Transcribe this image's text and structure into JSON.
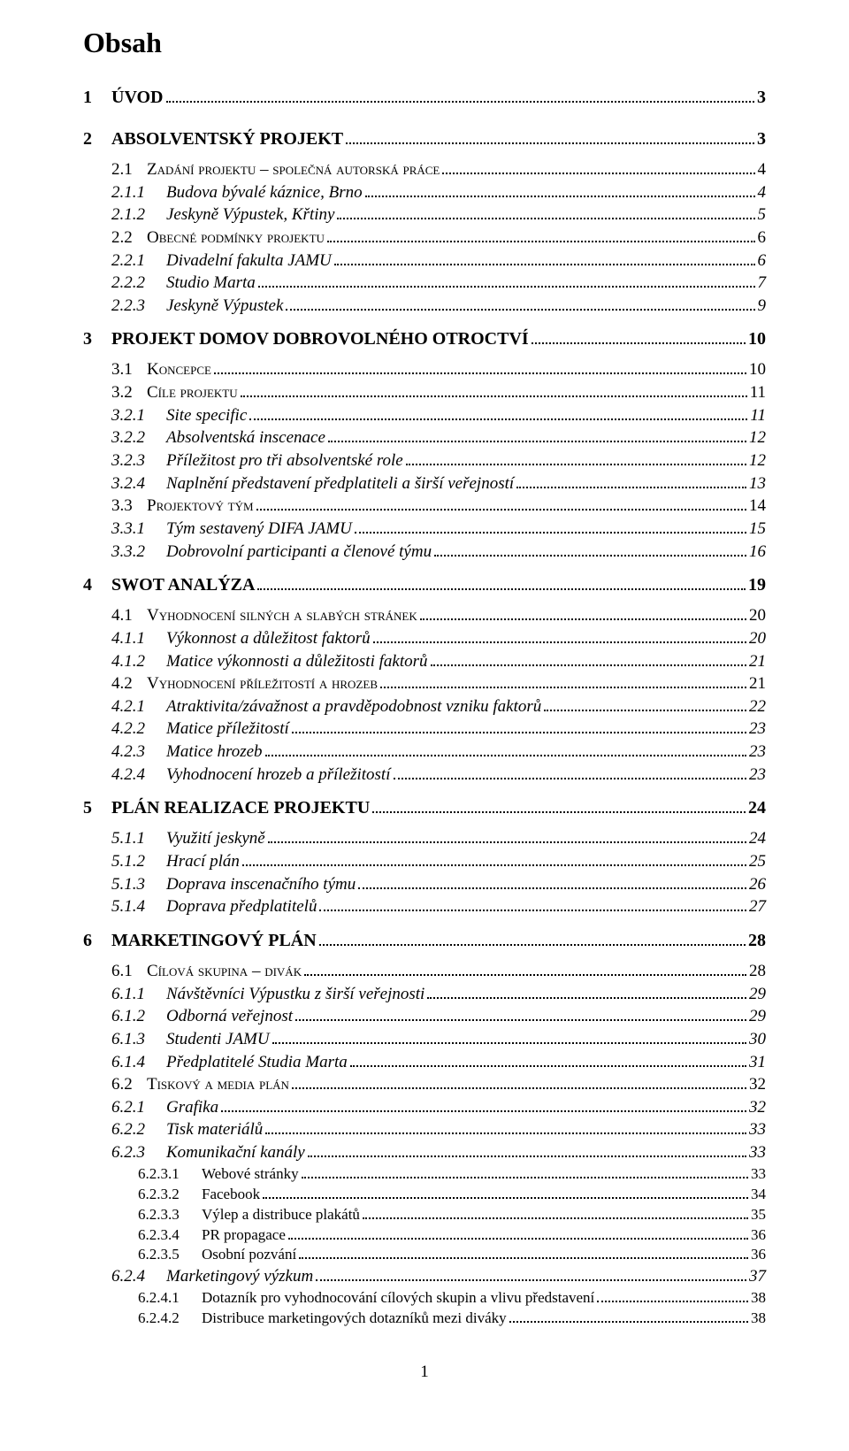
{
  "doc": {
    "title": "Obsah",
    "page_number": "1",
    "font_family": "Times New Roman",
    "text_color": "#000000",
    "background_color": "#ffffff",
    "dot_color": "#000000"
  },
  "toc": [
    {
      "level": "ch",
      "num": "1",
      "label": "ÚVOD",
      "page": "3"
    },
    {
      "level": "ch",
      "num": "2",
      "label": "ABSOLVENTSKÝ PROJEKT",
      "page": "3"
    },
    {
      "level": "sec",
      "num": "2.1",
      "label": "Zadání projektu – společná autorská práce",
      "page": "4"
    },
    {
      "level": "sub",
      "num": "2.1.1",
      "label": "Budova bývalé káznice, Brno",
      "page": "4"
    },
    {
      "level": "sub",
      "num": "2.1.2",
      "label": "Jeskyně Výpustek, Křtiny",
      "page": "5"
    },
    {
      "level": "sec",
      "num": "2.2",
      "label": "Obecné podmínky projektu",
      "page": "6"
    },
    {
      "level": "sub",
      "num": "2.2.1",
      "label": "Divadelní fakulta JAMU",
      "page": "6"
    },
    {
      "level": "sub",
      "num": "2.2.2",
      "label": "Studio Marta",
      "page": "7"
    },
    {
      "level": "sub",
      "num": "2.2.3",
      "label": "Jeskyně Výpustek",
      "page": "9"
    },
    {
      "level": "ch",
      "num": "3",
      "label": "PROJEKT DOMOV DOBROVOLNÉHO OTROCTVÍ",
      "page": "10"
    },
    {
      "level": "sec",
      "num": "3.1",
      "label": "Koncepce",
      "page": "10"
    },
    {
      "level": "sec",
      "num": "3.2",
      "label": "Cíle projektu",
      "page": "11"
    },
    {
      "level": "sub",
      "num": "3.2.1",
      "label": "Site specific",
      "page": "11"
    },
    {
      "level": "sub",
      "num": "3.2.2",
      "label": "Absolventská inscenace",
      "page": "12"
    },
    {
      "level": "sub",
      "num": "3.2.3",
      "label": "Příležitost pro tři absolventské role",
      "page": "12"
    },
    {
      "level": "sub",
      "num": "3.2.4",
      "label": "Naplnění představení předplatiteli a širší veřejností",
      "page": "13"
    },
    {
      "level": "sec",
      "num": "3.3",
      "label": "Projektový tým",
      "page": "14"
    },
    {
      "level": "sub",
      "num": "3.3.1",
      "label": "Tým sestavený DIFA JAMU",
      "page": "15"
    },
    {
      "level": "sub",
      "num": "3.3.2",
      "label": "Dobrovolní participanti a členové týmu",
      "page": "16"
    },
    {
      "level": "ch",
      "num": "4",
      "label": "SWOT ANALÝZA",
      "page": "19"
    },
    {
      "level": "sec",
      "num": "4.1",
      "label": "Vyhodnocení silných a slabých stránek",
      "page": "20"
    },
    {
      "level": "sub",
      "num": "4.1.1",
      "label": "Výkonnost a důležitost faktorů",
      "page": "20"
    },
    {
      "level": "sub",
      "num": "4.1.2",
      "label": "Matice výkonnosti a důležitosti faktorů",
      "page": "21"
    },
    {
      "level": "sec",
      "num": "4.2",
      "label": "Vyhodnocení příležitostí a hrozeb",
      "page": "21"
    },
    {
      "level": "sub",
      "num": "4.2.1",
      "label": "Atraktivita/závažnost a pravděpodobnost vzniku faktorů",
      "page": "22"
    },
    {
      "level": "sub",
      "num": "4.2.2",
      "label": "Matice příležitostí",
      "page": "23"
    },
    {
      "level": "sub",
      "num": "4.2.3",
      "label": "Matice hrozeb",
      "page": "23"
    },
    {
      "level": "sub",
      "num": "4.2.4",
      "label": "Vyhodnocení hrozeb a příležitostí",
      "page": "23"
    },
    {
      "level": "ch",
      "num": "5",
      "label": "PLÁN REALIZACE PROJEKTU",
      "page": "24"
    },
    {
      "level": "sub",
      "num": "5.1.1",
      "label": "Využití jeskyně",
      "page": "24"
    },
    {
      "level": "sub",
      "num": "5.1.2",
      "label": "Hrací plán",
      "page": "25"
    },
    {
      "level": "sub",
      "num": "5.1.3",
      "label": "Doprava inscenačního týmu",
      "page": "26"
    },
    {
      "level": "sub",
      "num": "5.1.4",
      "label": "Doprava předplatitelů",
      "page": "27"
    },
    {
      "level": "ch",
      "num": "6",
      "label": "MARKETINGOVÝ PLÁN",
      "page": "28"
    },
    {
      "level": "sec",
      "num": "6.1",
      "label": "Cílová skupina – divák",
      "page": "28"
    },
    {
      "level": "sub",
      "num": "6.1.1",
      "label": "Návštěvníci Výpustku z širší veřejnosti",
      "page": "29"
    },
    {
      "level": "sub",
      "num": "6.1.2",
      "label": "Odborná veřejnost",
      "page": "29"
    },
    {
      "level": "sub",
      "num": "6.1.3",
      "label": "Studenti JAMU",
      "page": "30"
    },
    {
      "level": "sub",
      "num": "6.1.4",
      "label": "Předplatitelé Studia Marta",
      "page": "31"
    },
    {
      "level": "sec",
      "num": "6.2",
      "label": "Tiskový a media plán",
      "page": "32"
    },
    {
      "level": "sub",
      "num": "6.2.1",
      "label": "Grafika",
      "page": "32"
    },
    {
      "level": "sub",
      "num": "6.2.2",
      "label": "Tisk materiálů",
      "page": "33"
    },
    {
      "level": "sub",
      "num": "6.2.3",
      "label": "Komunikační kanály",
      "page": "33"
    },
    {
      "level": "subsub",
      "num": "6.2.3.1",
      "label": "Webové stránky",
      "page": "33"
    },
    {
      "level": "subsub",
      "num": "6.2.3.2",
      "label": "Facebook",
      "page": "34"
    },
    {
      "level": "subsub",
      "num": "6.2.3.3",
      "label": "Výlep a distribuce plakátů",
      "page": "35"
    },
    {
      "level": "subsub",
      "num": "6.2.3.4",
      "label": "PR propagace",
      "page": "36"
    },
    {
      "level": "subsub",
      "num": "6.2.3.5",
      "label": "Osobní pozvání",
      "page": "36"
    },
    {
      "level": "sub",
      "num": "6.2.4",
      "label": "Marketingový výzkum",
      "page": "37"
    },
    {
      "level": "subsub",
      "num": "6.2.4.1",
      "label": "Dotazník pro vyhodnocování cílových skupin a vlivu představení",
      "page": "38"
    },
    {
      "level": "subsub",
      "num": "6.2.4.2",
      "label": "Distribuce marketingových dotazníků mezi diváky",
      "page": "38"
    }
  ]
}
